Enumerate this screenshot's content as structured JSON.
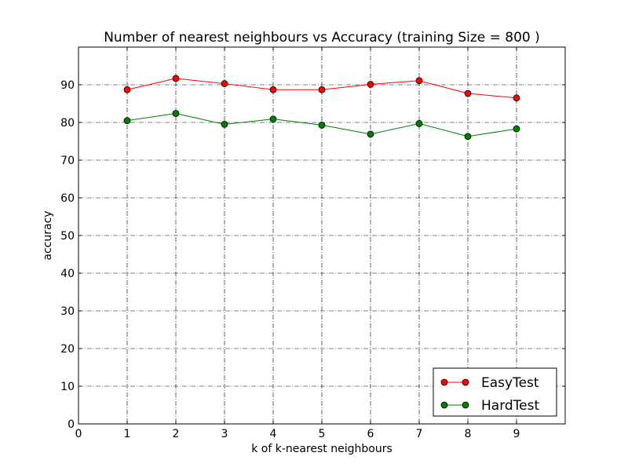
{
  "chart_data": {
    "type": "line",
    "title": "Number of nearest neighbours vs Accuracy (training Size = 800 )",
    "xlabel": "k of k-nearest neighbours",
    "ylabel": "accuracy",
    "xlim": [
      0,
      10
    ],
    "ylim": [
      0,
      100
    ],
    "xticks": [
      0,
      1,
      2,
      3,
      4,
      5,
      6,
      7,
      8,
      9
    ],
    "yticks": [
      0,
      10,
      20,
      30,
      40,
      50,
      60,
      70,
      80,
      90
    ],
    "grid": true,
    "legend_position": "lower-right",
    "x": [
      1,
      2,
      3,
      4,
      5,
      6,
      7,
      8,
      9
    ],
    "series": [
      {
        "name": "EasyTest",
        "color": "#ff0000",
        "marker_color": "#ff0000",
        "values": [
          88.7,
          91.7,
          90.3,
          88.7,
          88.7,
          90.1,
          91.1,
          87.7,
          86.5
        ]
      },
      {
        "name": "HardTest",
        "color": "#007f00",
        "marker_color": "#007f00",
        "values": [
          80.5,
          82.4,
          79.5,
          80.9,
          79.3,
          76.9,
          79.7,
          76.3,
          78.3
        ]
      }
    ]
  }
}
